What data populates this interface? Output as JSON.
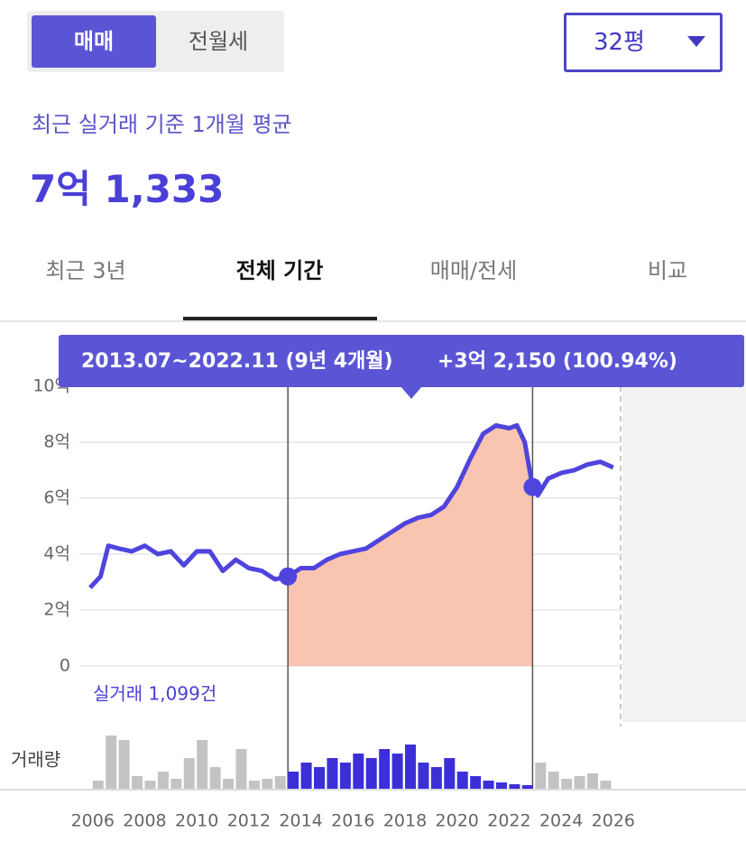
{
  "deal_tabs": {
    "items": [
      "매매",
      "전월세"
    ],
    "selected": 0
  },
  "size_select": "32평",
  "summary": {
    "label": "최근 실거래 기준 1개월 평균",
    "value": "7억 1,333"
  },
  "period_tabs": {
    "items": [
      "최근 3년",
      "전체 기간",
      "매매/전세",
      "비교"
    ],
    "selected": 1
  },
  "tooltip": {
    "period": "2013.07~2022.11 (9년 4개월)",
    "change": "+3억 2,150 (100.94%)"
  },
  "trade_count": "실거래 1,099건",
  "volume_label": "거래량",
  "chart_data": {
    "type": "line",
    "x": [
      2005.9,
      2006.3,
      2006.6,
      2007,
      2007.5,
      2008,
      2008.5,
      2009,
      2009.5,
      2010,
      2010.5,
      2011,
      2011.5,
      2012,
      2012.5,
      2013,
      2013.5,
      2014,
      2014.5,
      2015,
      2015.5,
      2016,
      2016.5,
      2017,
      2017.5,
      2018,
      2018.5,
      2019,
      2019.5,
      2020,
      2020.5,
      2021,
      2021.5,
      2022,
      2022.3,
      2022.6,
      2022.9,
      2023.1,
      2023.5,
      2024,
      2024.5,
      2025,
      2025.5,
      2026
    ],
    "series": [
      {
        "name": "실거래가",
        "color": "#4f44dd",
        "values": [
          2.8,
          3.2,
          4.3,
          4.2,
          4.1,
          4.3,
          4.0,
          4.1,
          3.6,
          4.1,
          4.1,
          3.4,
          3.8,
          3.5,
          3.4,
          3.1,
          3.2,
          3.5,
          3.5,
          3.8,
          4.0,
          4.1,
          4.2,
          4.5,
          4.8,
          5.1,
          5.3,
          5.4,
          5.7,
          6.4,
          7.4,
          8.3,
          8.6,
          8.5,
          8.6,
          8.0,
          6.4,
          6.1,
          6.7,
          6.9,
          7.0,
          7.2,
          7.3,
          7.1
        ]
      }
    ],
    "xlim": [
      2005.8,
      2031.1
    ],
    "xticks": [
      2006,
      2008,
      2010,
      2012,
      2014,
      2016,
      2018,
      2020,
      2022,
      2024,
      2026
    ],
    "ylim": [
      0,
      10
    ],
    "yticks": [
      0,
      {
        "value": 2,
        "label": "2억"
      },
      {
        "value": 4,
        "label": "4억"
      },
      {
        "value": 6,
        "label": "6억"
      },
      {
        "value": 8,
        "label": "8억"
      },
      {
        "value": 10,
        "label": "10억"
      }
    ],
    "grid": true,
    "selection": [
      2013.5,
      2022.9
    ],
    "selection_color": "#f9c4b0",
    "volume": {
      "x": [
        2006,
        2006.5,
        2007,
        2007.5,
        2008,
        2008.5,
        2009,
        2009.5,
        2010,
        2010.5,
        2011,
        2011.5,
        2012,
        2012.5,
        2013,
        2013.5,
        2014,
        2014.5,
        2015,
        2015.5,
        2016,
        2016.5,
        2017,
        2017.5,
        2018,
        2018.5,
        2019,
        2019.5,
        2020,
        2020.5,
        2021,
        2021.5,
        2022,
        2022.5,
        2023,
        2023.5,
        2024,
        2024.5,
        2025,
        2025.5
      ],
      "values": [
        10,
        60,
        55,
        15,
        10,
        20,
        12,
        35,
        55,
        25,
        12,
        45,
        10,
        12,
        15,
        20,
        30,
        25,
        35,
        30,
        40,
        35,
        45,
        40,
        50,
        30,
        25,
        35,
        20,
        15,
        10,
        8,
        6,
        5,
        30,
        20,
        12,
        15,
        18,
        10
      ],
      "ylim": [
        0,
        70
      ],
      "color": "#c3c3c3",
      "selected_color": "#3c2fd8"
    }
  }
}
